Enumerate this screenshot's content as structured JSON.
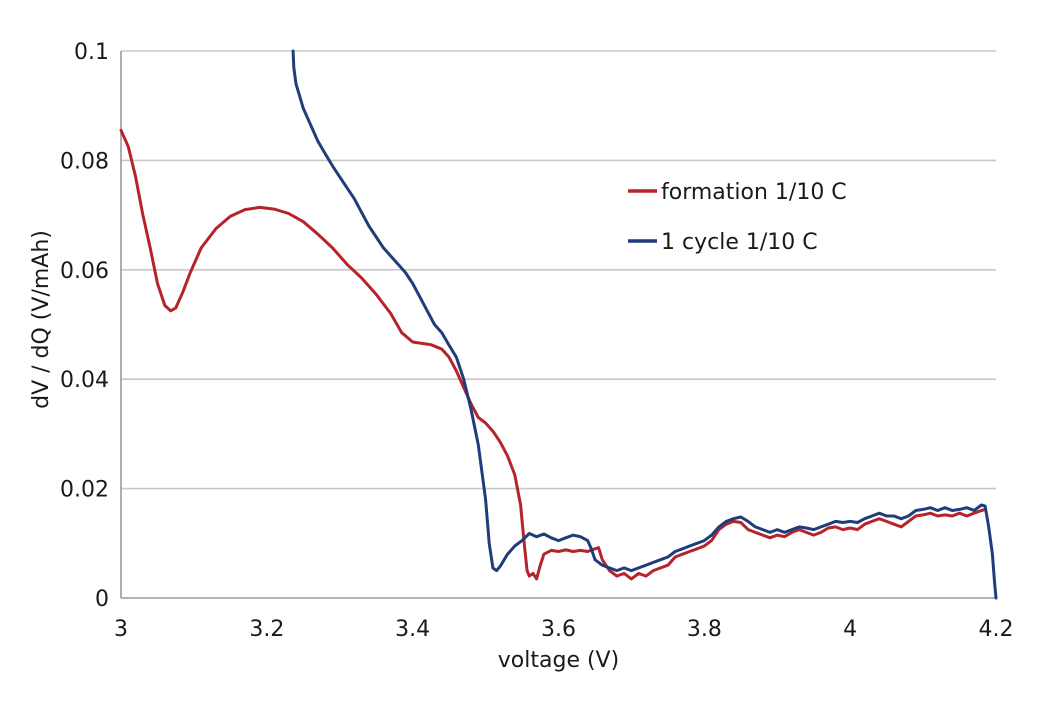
{
  "chart_data": {
    "type": "line",
    "title": "",
    "xlabel": "voltage (V)",
    "ylabel": "dV / dQ (V/mAh)",
    "xlim": [
      3,
      4.2
    ],
    "ylim": [
      0,
      0.1
    ],
    "x_ticks": [
      "3",
      "3.2",
      "3.4",
      "3.6",
      "3.8",
      "4",
      "4.2"
    ],
    "x_tick_values": [
      3,
      3.2,
      3.4,
      3.6,
      3.8,
      4,
      4.2
    ],
    "y_ticks": [
      "0",
      "0.02",
      "0.04",
      "0.06",
      "0.08",
      "0.1"
    ],
    "y_tick_values": [
      0,
      0.02,
      0.04,
      0.06,
      0.08,
      0.1
    ],
    "grid": "horizontal",
    "legend_position": "top-right",
    "series": [
      {
        "name": "formation 1/10 C",
        "color": "#b5232b",
        "points": [
          [
            3.0,
            0.0855
          ],
          [
            3.01,
            0.0825
          ],
          [
            3.02,
            0.077
          ],
          [
            3.03,
            0.07
          ],
          [
            3.04,
            0.064
          ],
          [
            3.05,
            0.0575
          ],
          [
            3.06,
            0.0535
          ],
          [
            3.068,
            0.0525
          ],
          [
            3.075,
            0.053
          ],
          [
            3.085,
            0.056
          ],
          [
            3.095,
            0.0595
          ],
          [
            3.11,
            0.064
          ],
          [
            3.13,
            0.0675
          ],
          [
            3.15,
            0.0698
          ],
          [
            3.17,
            0.071
          ],
          [
            3.19,
            0.0714
          ],
          [
            3.21,
            0.0711
          ],
          [
            3.23,
            0.0703
          ],
          [
            3.25,
            0.0688
          ],
          [
            3.27,
            0.0665
          ],
          [
            3.29,
            0.064
          ],
          [
            3.31,
            0.061
          ],
          [
            3.33,
            0.0585
          ],
          [
            3.35,
            0.0555
          ],
          [
            3.37,
            0.052
          ],
          [
            3.385,
            0.0485
          ],
          [
            3.4,
            0.0468
          ],
          [
            3.415,
            0.0465
          ],
          [
            3.425,
            0.0463
          ],
          [
            3.44,
            0.0455
          ],
          [
            3.45,
            0.044
          ],
          [
            3.46,
            0.0415
          ],
          [
            3.47,
            0.0385
          ],
          [
            3.48,
            0.0355
          ],
          [
            3.49,
            0.033
          ],
          [
            3.5,
            0.032
          ],
          [
            3.51,
            0.0305
          ],
          [
            3.52,
            0.0285
          ],
          [
            3.53,
            0.026
          ],
          [
            3.54,
            0.0225
          ],
          [
            3.548,
            0.017
          ],
          [
            3.553,
            0.01
          ],
          [
            3.557,
            0.005
          ],
          [
            3.56,
            0.004
          ],
          [
            3.565,
            0.0045
          ],
          [
            3.57,
            0.0035
          ],
          [
            3.575,
            0.006
          ],
          [
            3.58,
            0.008
          ],
          [
            3.59,
            0.0087
          ],
          [
            3.6,
            0.0085
          ],
          [
            3.61,
            0.0088
          ],
          [
            3.62,
            0.0085
          ],
          [
            3.63,
            0.0087
          ],
          [
            3.64,
            0.0085
          ],
          [
            3.65,
            0.009
          ],
          [
            3.655,
            0.0092
          ],
          [
            3.66,
            0.007
          ],
          [
            3.67,
            0.005
          ],
          [
            3.68,
            0.004
          ],
          [
            3.69,
            0.0045
          ],
          [
            3.7,
            0.0035
          ],
          [
            3.71,
            0.0045
          ],
          [
            3.72,
            0.004
          ],
          [
            3.73,
            0.005
          ],
          [
            3.74,
            0.0055
          ],
          [
            3.75,
            0.006
          ],
          [
            3.76,
            0.0075
          ],
          [
            3.77,
            0.008
          ],
          [
            3.78,
            0.0085
          ],
          [
            3.79,
            0.009
          ],
          [
            3.8,
            0.0095
          ],
          [
            3.81,
            0.0105
          ],
          [
            3.82,
            0.0125
          ],
          [
            3.83,
            0.0135
          ],
          [
            3.84,
            0.014
          ],
          [
            3.85,
            0.0138
          ],
          [
            3.86,
            0.0125
          ],
          [
            3.87,
            0.012
          ],
          [
            3.88,
            0.0115
          ],
          [
            3.89,
            0.011
          ],
          [
            3.9,
            0.0115
          ],
          [
            3.91,
            0.0112
          ],
          [
            3.92,
            0.012
          ],
          [
            3.93,
            0.0125
          ],
          [
            3.94,
            0.012
          ],
          [
            3.95,
            0.0115
          ],
          [
            3.96,
            0.012
          ],
          [
            3.97,
            0.0128
          ],
          [
            3.98,
            0.013
          ],
          [
            3.99,
            0.0125
          ],
          [
            4.0,
            0.0128
          ],
          [
            4.01,
            0.0125
          ],
          [
            4.02,
            0.0135
          ],
          [
            4.03,
            0.014
          ],
          [
            4.04,
            0.0145
          ],
          [
            4.05,
            0.014
          ],
          [
            4.06,
            0.0135
          ],
          [
            4.07,
            0.013
          ],
          [
            4.08,
            0.014
          ],
          [
            4.09,
            0.015
          ],
          [
            4.1,
            0.0152
          ],
          [
            4.11,
            0.0155
          ],
          [
            4.12,
            0.015
          ],
          [
            4.13,
            0.0152
          ],
          [
            4.14,
            0.015
          ],
          [
            4.15,
            0.0155
          ],
          [
            4.16,
            0.015
          ],
          [
            4.17,
            0.0155
          ],
          [
            4.18,
            0.016
          ],
          [
            4.185,
            0.0162
          ]
        ]
      },
      {
        "name": "1 cycle 1/10 C",
        "color": "#1f3d7a",
        "points": [
          [
            3.236,
            0.1
          ],
          [
            3.237,
            0.097
          ],
          [
            3.24,
            0.094
          ],
          [
            3.25,
            0.0895
          ],
          [
            3.26,
            0.0865
          ],
          [
            3.27,
            0.0835
          ],
          [
            3.28,
            0.0812
          ],
          [
            3.29,
            0.079
          ],
          [
            3.3,
            0.077
          ],
          [
            3.31,
            0.075
          ],
          [
            3.32,
            0.073
          ],
          [
            3.33,
            0.0705
          ],
          [
            3.34,
            0.068
          ],
          [
            3.35,
            0.066
          ],
          [
            3.36,
            0.064
          ],
          [
            3.37,
            0.0625
          ],
          [
            3.38,
            0.061
          ],
          [
            3.39,
            0.0595
          ],
          [
            3.4,
            0.0575
          ],
          [
            3.41,
            0.055
          ],
          [
            3.42,
            0.0525
          ],
          [
            3.43,
            0.05
          ],
          [
            3.44,
            0.0485
          ],
          [
            3.45,
            0.0462
          ],
          [
            3.46,
            0.044
          ],
          [
            3.47,
            0.04
          ],
          [
            3.48,
            0.0345
          ],
          [
            3.49,
            0.028
          ],
          [
            3.5,
            0.018
          ],
          [
            3.505,
            0.01
          ],
          [
            3.51,
            0.0055
          ],
          [
            3.515,
            0.005
          ],
          [
            3.52,
            0.0058
          ],
          [
            3.53,
            0.008
          ],
          [
            3.54,
            0.0095
          ],
          [
            3.55,
            0.0105
          ],
          [
            3.56,
            0.0118
          ],
          [
            3.57,
            0.0112
          ],
          [
            3.58,
            0.0117
          ],
          [
            3.59,
            0.011
          ],
          [
            3.6,
            0.0105
          ],
          [
            3.61,
            0.011
          ],
          [
            3.62,
            0.0115
          ],
          [
            3.63,
            0.0112
          ],
          [
            3.64,
            0.0105
          ],
          [
            3.645,
            0.009
          ],
          [
            3.65,
            0.007
          ],
          [
            3.66,
            0.006
          ],
          [
            3.67,
            0.0055
          ],
          [
            3.68,
            0.005
          ],
          [
            3.69,
            0.0055
          ],
          [
            3.7,
            0.005
          ],
          [
            3.71,
            0.0055
          ],
          [
            3.72,
            0.006
          ],
          [
            3.73,
            0.0065
          ],
          [
            3.74,
            0.007
          ],
          [
            3.75,
            0.0075
          ],
          [
            3.76,
            0.0085
          ],
          [
            3.77,
            0.009
          ],
          [
            3.78,
            0.0095
          ],
          [
            3.79,
            0.01
          ],
          [
            3.8,
            0.0105
          ],
          [
            3.81,
            0.0115
          ],
          [
            3.82,
            0.013
          ],
          [
            3.83,
            0.014
          ],
          [
            3.84,
            0.0145
          ],
          [
            3.85,
            0.0148
          ],
          [
            3.86,
            0.014
          ],
          [
            3.87,
            0.013
          ],
          [
            3.88,
            0.0125
          ],
          [
            3.89,
            0.012
          ],
          [
            3.9,
            0.0125
          ],
          [
            3.91,
            0.012
          ],
          [
            3.92,
            0.0125
          ],
          [
            3.93,
            0.013
          ],
          [
            3.94,
            0.0128
          ],
          [
            3.95,
            0.0125
          ],
          [
            3.96,
            0.013
          ],
          [
            3.97,
            0.0135
          ],
          [
            3.98,
            0.014
          ],
          [
            3.99,
            0.0138
          ],
          [
            4.0,
            0.014
          ],
          [
            4.01,
            0.0138
          ],
          [
            4.02,
            0.0145
          ],
          [
            4.03,
            0.015
          ],
          [
            4.04,
            0.0155
          ],
          [
            4.05,
            0.015
          ],
          [
            4.06,
            0.015
          ],
          [
            4.07,
            0.0145
          ],
          [
            4.08,
            0.015
          ],
          [
            4.09,
            0.016
          ],
          [
            4.1,
            0.0162
          ],
          [
            4.11,
            0.0165
          ],
          [
            4.12,
            0.016
          ],
          [
            4.13,
            0.0165
          ],
          [
            4.14,
            0.016
          ],
          [
            4.15,
            0.0162
          ],
          [
            4.16,
            0.0165
          ],
          [
            4.17,
            0.016
          ],
          [
            4.18,
            0.017
          ],
          [
            4.185,
            0.0168
          ],
          [
            4.19,
            0.013
          ],
          [
            4.195,
            0.008
          ],
          [
            4.198,
            0.003
          ],
          [
            4.2,
            0.0
          ]
        ]
      }
    ]
  }
}
